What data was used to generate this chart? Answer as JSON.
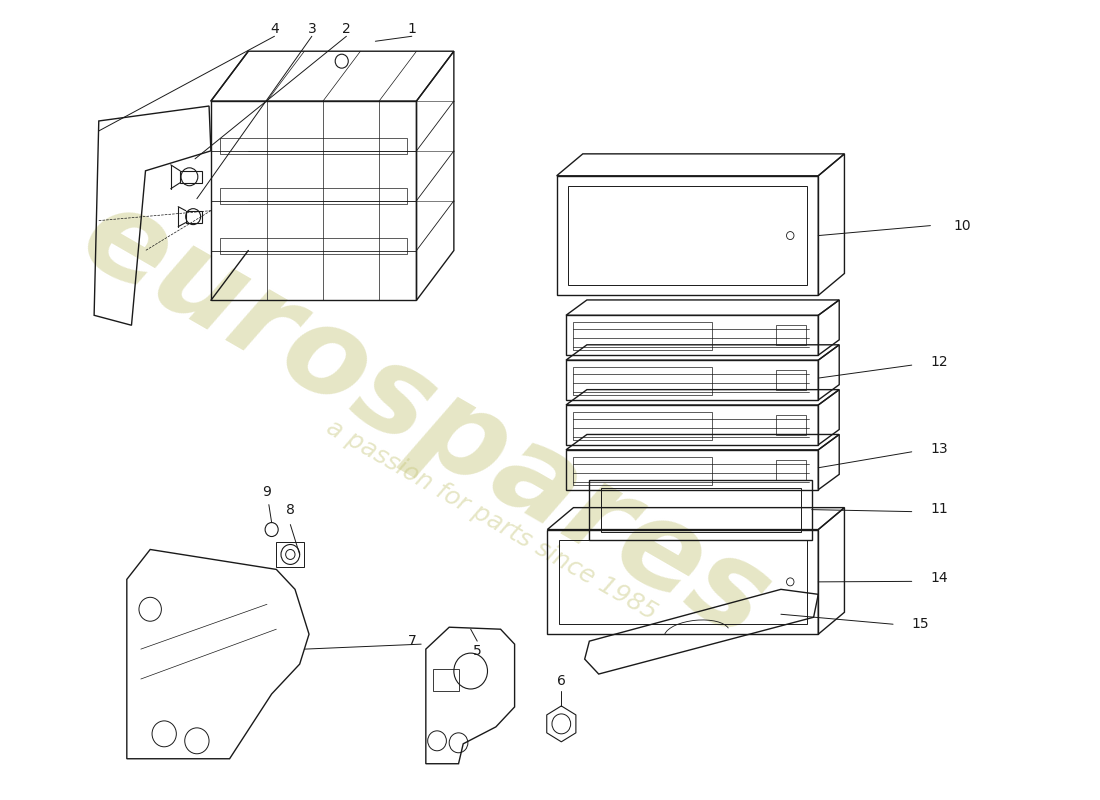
{
  "background_color": "#ffffff",
  "line_color": "#1a1a1a",
  "watermark_text": "eurospares",
  "watermark_subtext": "a passion for parts since 1985",
  "watermark_color": "#c8c880",
  "fig_w": 11.0,
  "fig_h": 8.0,
  "dpi": 100
}
